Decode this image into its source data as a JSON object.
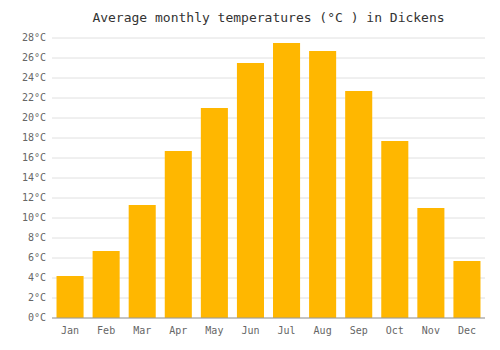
{
  "chart_data": {
    "type": "bar",
    "title": "Average monthly temperatures (°C ) in Dickens",
    "categories": [
      "Jan",
      "Feb",
      "Mar",
      "Apr",
      "May",
      "Jun",
      "Jul",
      "Aug",
      "Sep",
      "Oct",
      "Nov",
      "Dec"
    ],
    "values": [
      4.2,
      6.7,
      11.3,
      16.7,
      21.0,
      25.5,
      27.5,
      26.7,
      22.7,
      17.7,
      11.0,
      5.7
    ],
    "color": "#FFB700",
    "ylim": [
      0,
      28
    ],
    "yticks": [
      {
        "value": 0,
        "label": "0°C"
      },
      {
        "value": 2,
        "label": "2°C"
      },
      {
        "value": 4,
        "label": "4°C"
      },
      {
        "value": 6,
        "label": "6°C"
      },
      {
        "value": 8,
        "label": "8°C"
      },
      {
        "value": 10,
        "label": "10°C"
      },
      {
        "value": 12,
        "label": "12°C"
      },
      {
        "value": 14,
        "label": "14°C"
      },
      {
        "value": 16,
        "label": "16°C"
      },
      {
        "value": 18,
        "label": "18°C"
      },
      {
        "value": 20,
        "label": "20°C"
      },
      {
        "value": 22,
        "label": "22°C"
      },
      {
        "value": 24,
        "label": "24°C"
      },
      {
        "value": 26,
        "label": "26°C"
      },
      {
        "value": 28,
        "label": "28°C"
      }
    ],
    "grid": true
  }
}
